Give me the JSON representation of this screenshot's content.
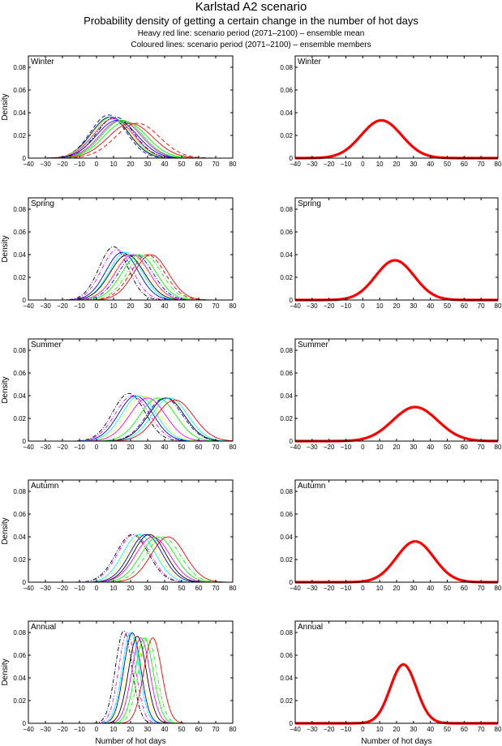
{
  "chart_data": {
    "type": "line",
    "title": "Karlstad A2 scenario",
    "subtitle": "Probability density of getting a certain change in the number of hot days",
    "notes": [
      "Heavy red line: scenario period (2071–2100) – ensemble mean",
      "Coloured lines: scenario period (2071–2100) – ensemble members"
    ],
    "xlabel": "Number of hot days",
    "ylabel": "Density",
    "xlim": [
      -40,
      80
    ],
    "ylim": [
      0,
      0.09
    ],
    "xticks": [
      "-40",
      "-30",
      "-20",
      "-10",
      "0",
      "10",
      "20",
      "30",
      "40",
      "50",
      "60",
      "70",
      "80"
    ],
    "yticks": [
      "0",
      "0.02",
      "0.04",
      "0.06",
      "0.08"
    ],
    "mean_color": "#ff0000",
    "panels": [
      {
        "season": "Winter",
        "mean": {
          "mu": 11,
          "sd": 12
        },
        "members": [
          [
            7,
            10.5,
            "#0000ff",
            "dash"
          ],
          [
            8,
            11,
            "#000000",
            "solid"
          ],
          [
            9,
            11,
            "#00ffff",
            "solid"
          ],
          [
            9,
            11.5,
            "#ffff00",
            "solid"
          ],
          [
            10,
            11.5,
            "#ff00ff",
            "solid"
          ],
          [
            12,
            12,
            "#0000ff",
            "solid"
          ],
          [
            14,
            12,
            "#ff00ff",
            "solid"
          ],
          [
            15,
            12,
            "#00ff00",
            "solid"
          ],
          [
            17,
            12.5,
            "#00ff00",
            "solid"
          ],
          [
            20,
            13,
            "#ff0000",
            "solid"
          ],
          [
            24,
            13,
            "#ff0000",
            "dash"
          ],
          [
            11,
            11,
            "#000000",
            "dashdot"
          ]
        ]
      },
      {
        "season": "Spring",
        "mean": {
          "mu": 19,
          "sd": 11.4
        },
        "members": [
          [
            10,
            8.5,
            "#000000",
            "dashdot"
          ],
          [
            12,
            9,
            "#ff00ff",
            "dashdot"
          ],
          [
            15,
            9.5,
            "#0000ff",
            "solid"
          ],
          [
            17,
            9.5,
            "#00ffff",
            "solid"
          ],
          [
            18,
            10,
            "#000000",
            "solid"
          ],
          [
            20,
            10,
            "#ffff00",
            "dash"
          ],
          [
            21,
            10,
            "#ff00ff",
            "solid"
          ],
          [
            23,
            10,
            "#0000ff",
            "dashdot"
          ],
          [
            25,
            10,
            "#00ff00",
            "solid"
          ],
          [
            28,
            10,
            "#00ff00",
            "dashdot"
          ],
          [
            30,
            10,
            "#ff0000",
            "dash"
          ],
          [
            32,
            10,
            "#ff0000",
            "solid"
          ]
        ]
      },
      {
        "season": "Summer",
        "mean": {
          "mu": 31,
          "sd": 13.3
        },
        "members": [
          [
            19,
            9.5,
            "#000000",
            "dashdot"
          ],
          [
            21,
            10,
            "#ff00ff",
            "dashdot"
          ],
          [
            23,
            10,
            "#0000ff",
            "solid"
          ],
          [
            25,
            10,
            "#00ffff",
            "solid"
          ],
          [
            27,
            10,
            "#ffff00",
            "dash"
          ],
          [
            30,
            10.5,
            "#ff00ff",
            "solid"
          ],
          [
            36,
            10.5,
            "#00ff00",
            "solid"
          ],
          [
            40,
            10.5,
            "#0000ff",
            "dashdot"
          ],
          [
            41,
            10.5,
            "#000000",
            "solid"
          ],
          [
            43,
            10.5,
            "#00ffff",
            "solid"
          ],
          [
            46,
            11,
            "#ff0000",
            "solid"
          ]
        ]
      },
      {
        "season": "Autumn",
        "mean": {
          "mu": 31,
          "sd": 11.1
        },
        "members": [
          [
            21,
            9.5,
            "#000000",
            "dashdot"
          ],
          [
            22,
            9.5,
            "#ff00ff",
            "dashdot"
          ],
          [
            25,
            9.5,
            "#00ffff",
            "solid"
          ],
          [
            27,
            9.5,
            "#ffff00",
            "dash"
          ],
          [
            29,
            9.5,
            "#0000ff",
            "solid"
          ],
          [
            31,
            9.5,
            "#000000",
            "solid"
          ],
          [
            33,
            10,
            "#ff00ff",
            "solid"
          ],
          [
            36,
            10,
            "#00ff00",
            "solid"
          ],
          [
            39,
            10,
            "#00ff00",
            "dashdot"
          ],
          [
            42,
            10,
            "#ff0000",
            "solid"
          ]
        ]
      },
      {
        "season": "Annual",
        "mean": {
          "mu": 24,
          "sd": 7.7
        },
        "members": [
          [
            16,
            4.9,
            "#000000",
            "dashdot"
          ],
          [
            18,
            5,
            "#ff00ff",
            "dashdot"
          ],
          [
            20,
            5,
            "#00ffff",
            "solid"
          ],
          [
            21,
            5,
            "#0000ff",
            "solid"
          ],
          [
            22,
            5.2,
            "#ffff00",
            "dash"
          ],
          [
            24,
            5.2,
            "#000000",
            "solid"
          ],
          [
            26,
            5.3,
            "#ff00ff",
            "solid"
          ],
          [
            28,
            5.3,
            "#00ff00",
            "solid"
          ],
          [
            30,
            5.3,
            "#00ff00",
            "dashdot"
          ],
          [
            33,
            5.3,
            "#ff0000",
            "solid"
          ]
        ]
      }
    ]
  }
}
